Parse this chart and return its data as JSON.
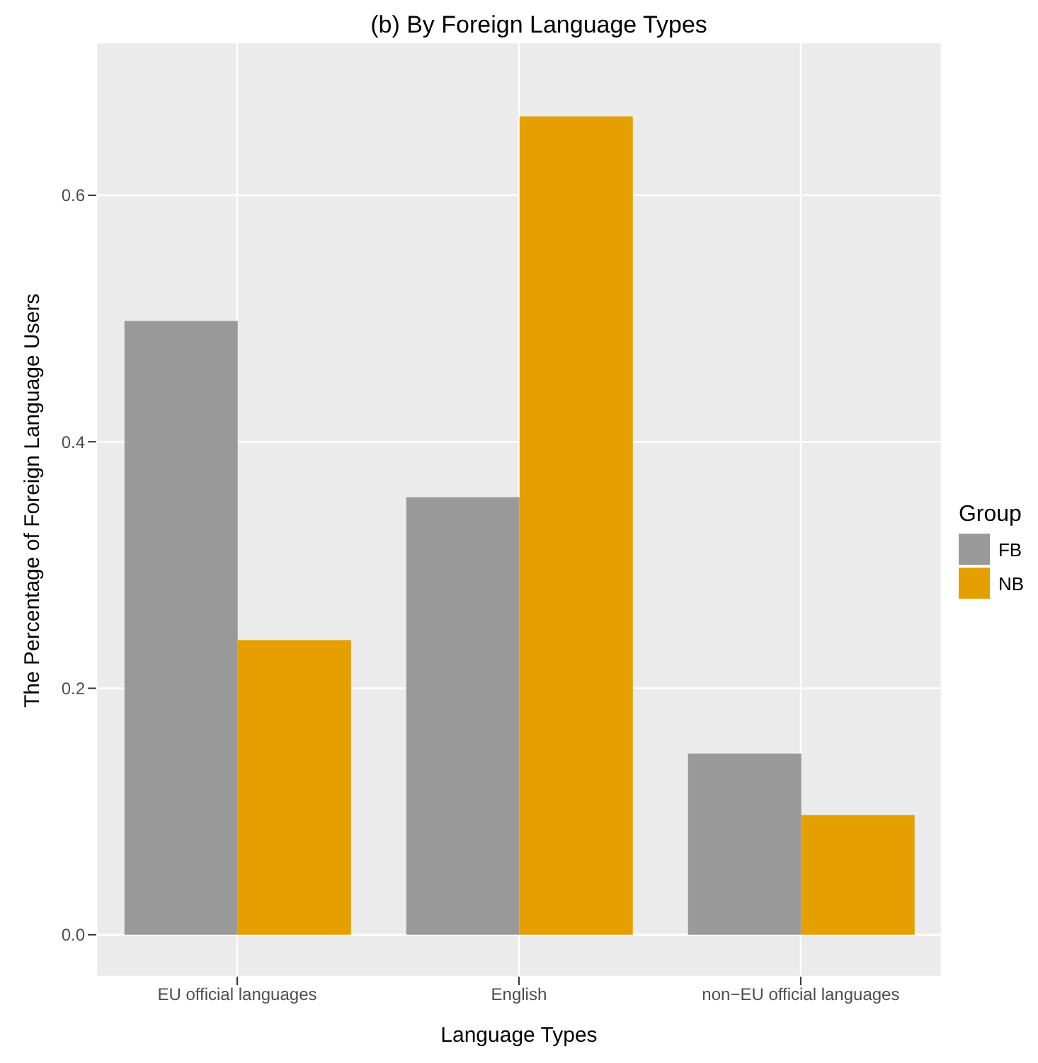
{
  "chart_data": {
    "type": "bar",
    "title": "(b) By Foreign Language Types",
    "xlabel": "Language Types",
    "ylabel": "The Percentage of Foreign Language Users",
    "legend_title": "Group",
    "categories": [
      "EU official languages",
      "English",
      "non−EU official languages"
    ],
    "series": [
      {
        "name": "FB",
        "color": "#999999",
        "values": [
          0.498,
          0.355,
          0.147
        ]
      },
      {
        "name": "NB",
        "color": "#e69f00",
        "values": [
          0.239,
          0.664,
          0.097
        ]
      }
    ],
    "ylim": [
      -0.034,
      0.724
    ],
    "yticks": [
      {
        "value": 0,
        "label": "0.0"
      },
      {
        "value": 0.2,
        "label": "0.2"
      },
      {
        "value": 0.4,
        "label": "0.4"
      },
      {
        "value": 0.6,
        "label": "0.6"
      }
    ],
    "grid": true,
    "legend": "right"
  }
}
